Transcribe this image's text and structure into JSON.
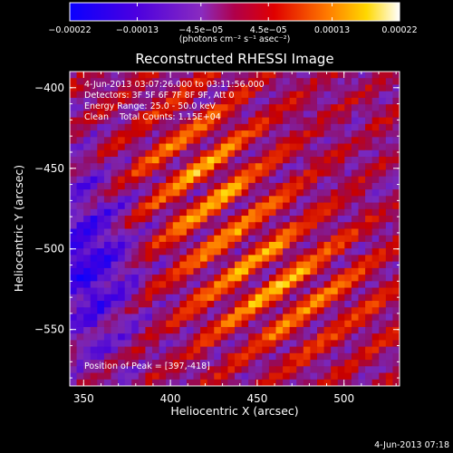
{
  "chart_data": {
    "type": "heatmap",
    "title": "Reconstructed RHESSI Image",
    "xlabel": "Heliocentric X (arcsec)",
    "ylabel": "Heliocentric Y (arcsec)",
    "xlim": [
      342,
      532
    ],
    "ylim": [
      -585,
      -390
    ],
    "xticks": [
      350,
      400,
      450,
      500
    ],
    "yticks": [
      -400,
      -450,
      -500,
      -550
    ],
    "xtick_labels": [
      "350",
      "400",
      "450",
      "500"
    ],
    "ytick_labels": [
      "−400",
      "−450",
      "−500",
      "−550"
    ],
    "colorbar": {
      "min": -0.00022,
      "max": 0.00022,
      "ticks": [
        -0.00022,
        -0.00013,
        -4.5e-05,
        4.5e-05,
        0.00013,
        0.00022
      ],
      "tick_labels": [
        "−0.00022",
        "−0.00013",
        "−4.5e−05",
        "4.5e−05",
        "0.00013",
        "0.00022"
      ],
      "units": "(photons cm⁻² s⁻¹ asec⁻²)"
    },
    "info_lines": [
      "4-Jun-2013 03:07:26.000 to 03:11:56.000",
      "Detectors: 3F 5F 6F 7F 8F 9F, Att 0",
      "Energy Range: 25.0 - 50.0 keV",
      "Clean    Total Counts: 1.15E+04"
    ],
    "peak_label": "Position of Peak = [397,-418]",
    "peak": [
      397,
      -418
    ],
    "grid": false
  },
  "footer": {
    "timestamp": "4-Jun-2013 07:18"
  }
}
